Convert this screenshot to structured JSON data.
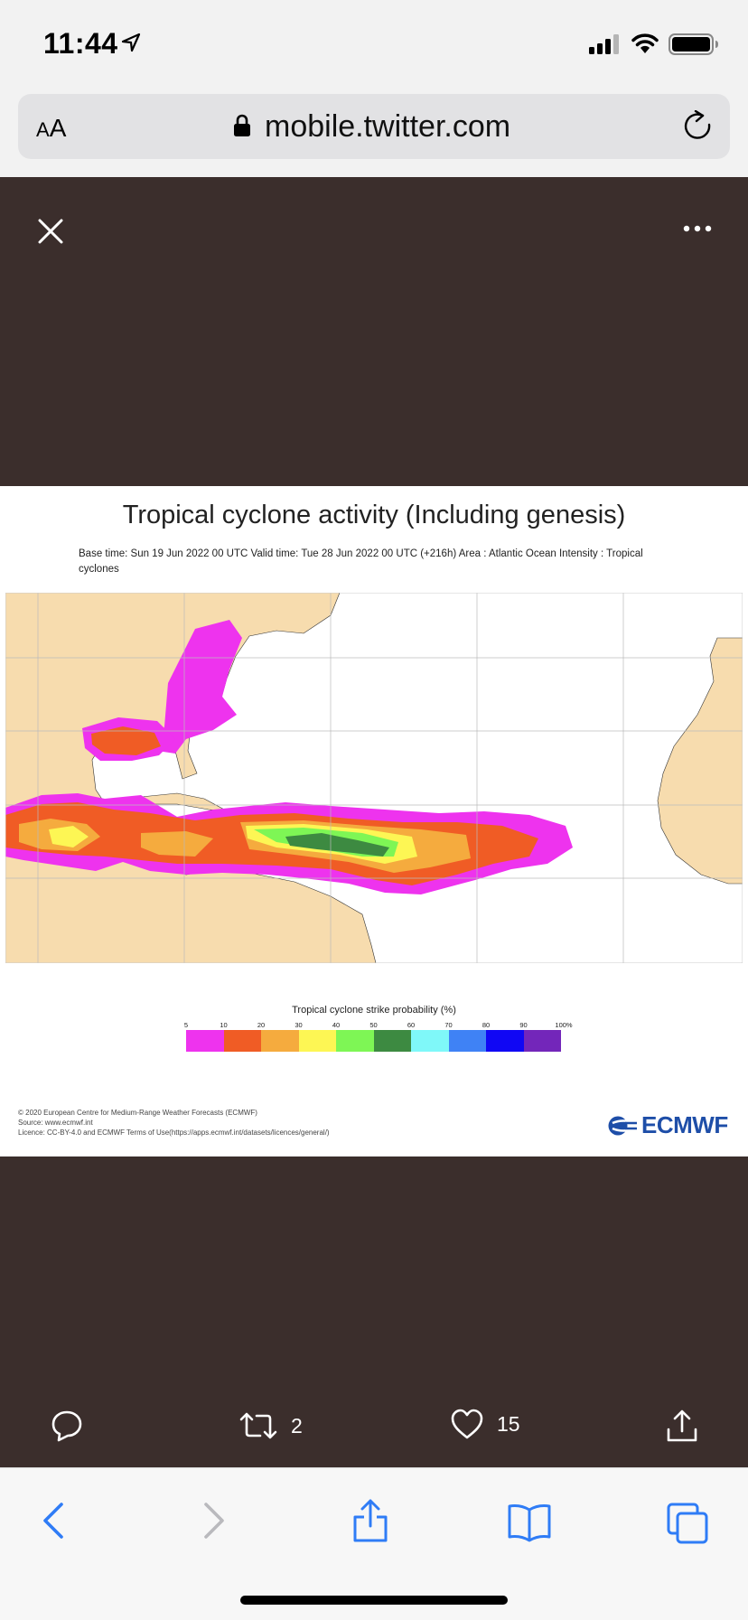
{
  "status_bar": {
    "time": "11:44"
  },
  "browser": {
    "text_size_small": "A",
    "text_size_large": "A",
    "url": "mobile.twitter.com"
  },
  "media": {
    "title": "Tropical cyclone activity (Including genesis)",
    "subtitle": "Base time: Sun 19 Jun 2022 00 UTC Valid time: Tue 28 Jun 2022 00 UTC (+216h) Area : Atlantic Ocean Intensity : Tropical cyclones",
    "legend_title": "Tropical cyclone strike probability (%)",
    "legend_labels": [
      "5",
      "10",
      "20",
      "30",
      "40",
      "50",
      "60",
      "70",
      "80",
      "90",
      "100%"
    ],
    "legend_colors": [
      "#ee33ee",
      "#f05c25",
      "#f5ab3e",
      "#fdf654",
      "#7ef655",
      "#3d8a41",
      "#7ff8f9",
      "#3f82f5",
      "#1007f4",
      "#7326ba"
    ],
    "copyright_lines": [
      "© 2020 European Centre for Medium-Range Weather Forecasts (ECMWF)",
      "Source: www.ecmwf.int",
      "Licence: CC-BY-4.0 and ECMWF Terms of Use(https://apps.ecmwf.int/datasets/licences/general/)"
    ],
    "logo_text": "ECMWF"
  },
  "tweet_actions": {
    "retweet_count": "2",
    "like_count": "15"
  }
}
